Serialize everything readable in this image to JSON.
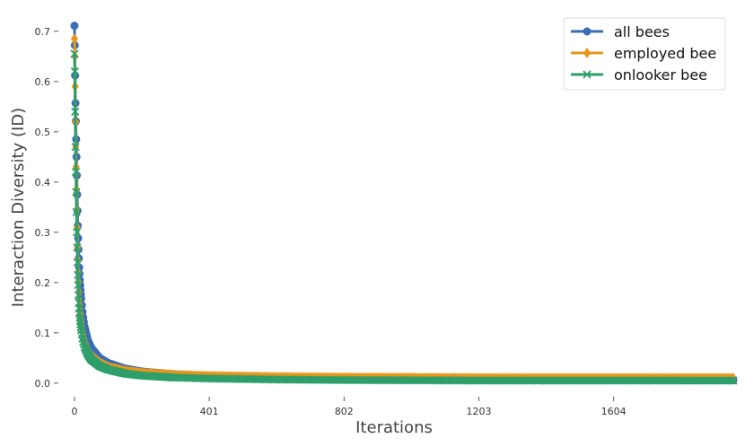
{
  "chart_data": {
    "type": "line",
    "title": "",
    "xlabel": "Iterations",
    "ylabel": "Interaction Diversity (ID)",
    "xlim": [
      -40,
      1920
    ],
    "ylim": [
      -0.02,
      0.73
    ],
    "xticks": [
      0,
      401,
      802,
      1203,
      1604
    ],
    "yticks": [
      0.0,
      0.1,
      0.2,
      0.3,
      0.4,
      0.5,
      0.6,
      0.7
    ],
    "grid": false,
    "legend_position": "top-right",
    "series": [
      {
        "name": "all bees",
        "color": "#3a6db5",
        "marker": "circle",
        "points": [
          [
            0,
            0.711
          ],
          [
            1,
            0.672
          ],
          [
            2,
            0.612
          ],
          [
            3,
            0.557
          ],
          [
            4,
            0.521
          ],
          [
            5,
            0.485
          ],
          [
            6,
            0.45
          ],
          [
            7,
            0.413
          ],
          [
            8,
            0.375
          ],
          [
            9,
            0.343
          ],
          [
            10,
            0.313
          ],
          [
            11,
            0.288
          ],
          [
            12,
            0.266
          ],
          [
            13,
            0.248
          ],
          [
            14,
            0.23
          ],
          [
            16,
            0.205
          ],
          [
            18,
            0.185
          ],
          [
            20,
            0.168
          ],
          [
            25,
            0.135
          ],
          [
            30,
            0.112
          ],
          [
            40,
            0.085
          ],
          [
            50,
            0.07
          ],
          [
            75,
            0.05
          ],
          [
            100,
            0.04
          ],
          [
            150,
            0.029
          ],
          [
            200,
            0.023
          ],
          [
            300,
            0.017
          ],
          [
            400,
            0.014
          ],
          [
            600,
            0.011
          ],
          [
            800,
            0.009
          ],
          [
            1000,
            0.008
          ],
          [
            1200,
            0.0075
          ],
          [
            1400,
            0.007
          ],
          [
            1600,
            0.0065
          ],
          [
            1800,
            0.006
          ],
          [
            1960,
            0.006
          ]
        ]
      },
      {
        "name": "employed bee",
        "color": "#e8961a",
        "marker": "diamond",
        "points": [
          [
            0,
            0.685
          ],
          [
            1,
            0.65
          ],
          [
            2,
            0.59
          ],
          [
            3,
            0.52
          ],
          [
            4,
            0.47
          ],
          [
            5,
            0.43
          ],
          [
            6,
            0.385
          ],
          [
            7,
            0.345
          ],
          [
            8,
            0.31
          ],
          [
            9,
            0.27
          ],
          [
            10,
            0.245
          ],
          [
            11,
            0.22
          ],
          [
            12,
            0.2
          ],
          [
            13,
            0.18
          ],
          [
            14,
            0.165
          ],
          [
            16,
            0.145
          ],
          [
            18,
            0.13
          ],
          [
            20,
            0.12
          ],
          [
            25,
            0.098
          ],
          [
            30,
            0.083
          ],
          [
            40,
            0.065
          ],
          [
            50,
            0.055
          ],
          [
            75,
            0.04
          ],
          [
            100,
            0.032
          ],
          [
            150,
            0.024
          ],
          [
            200,
            0.02
          ],
          [
            300,
            0.016
          ],
          [
            400,
            0.014
          ],
          [
            600,
            0.012
          ],
          [
            800,
            0.011
          ],
          [
            1000,
            0.0105
          ],
          [
            1200,
            0.01
          ],
          [
            1400,
            0.01
          ],
          [
            1600,
            0.01
          ],
          [
            1800,
            0.01
          ],
          [
            1960,
            0.01
          ]
        ]
      },
      {
        "name": "onlooker bee",
        "color": "#2e9e6b",
        "marker": "x",
        "points": [
          [
            0,
            0.655
          ],
          [
            1,
            0.62
          ],
          [
            2,
            0.54
          ],
          [
            3,
            0.47
          ],
          [
            4,
            0.42
          ],
          [
            5,
            0.38
          ],
          [
            6,
            0.34
          ],
          [
            7,
            0.3
          ],
          [
            8,
            0.27
          ],
          [
            9,
            0.24
          ],
          [
            10,
            0.215
          ],
          [
            11,
            0.195
          ],
          [
            12,
            0.175
          ],
          [
            13,
            0.16
          ],
          [
            14,
            0.148
          ],
          [
            16,
            0.13
          ],
          [
            18,
            0.117
          ],
          [
            20,
            0.105
          ],
          [
            25,
            0.085
          ],
          [
            30,
            0.072
          ],
          [
            40,
            0.057
          ],
          [
            50,
            0.047
          ],
          [
            75,
            0.034
          ],
          [
            100,
            0.027
          ],
          [
            150,
            0.019
          ],
          [
            200,
            0.015
          ],
          [
            300,
            0.011
          ],
          [
            400,
            0.009
          ],
          [
            600,
            0.007
          ],
          [
            800,
            0.006
          ],
          [
            1000,
            0.0055
          ],
          [
            1200,
            0.005
          ],
          [
            1400,
            0.005
          ],
          [
            1600,
            0.005
          ],
          [
            1800,
            0.005
          ],
          [
            1960,
            0.005
          ]
        ]
      }
    ]
  }
}
